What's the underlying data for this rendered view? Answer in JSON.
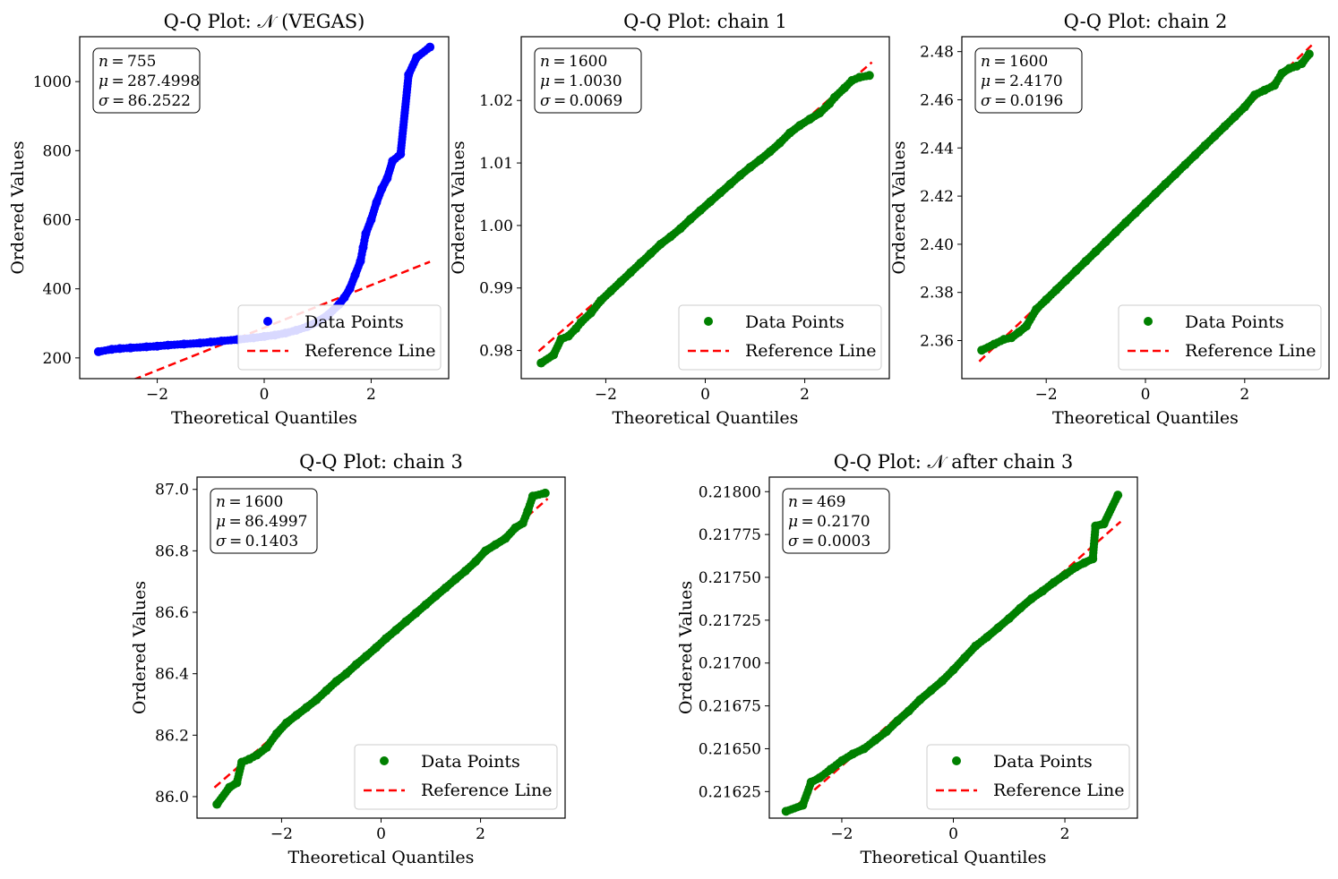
{
  "figure": {
    "legend_labels": {
      "data": "Data Points",
      "ref": "Reference Line"
    }
  },
  "chart_data": [
    {
      "type": "scatter",
      "title": "Q-Q Plot: 𝒩 (VEGAS)",
      "xlabel": "Theoretical Quantiles",
      "ylabel": "Ordered Values",
      "color": "#0000ff",
      "ref_color": "#ff0000",
      "xlim": [
        -3.45,
        3.45
      ],
      "ylim": [
        140,
        1130
      ],
      "xticks": [
        -2,
        0,
        2
      ],
      "yticks": [
        200,
        400,
        600,
        800,
        1000
      ],
      "ytick_labels": [
        "200",
        "400",
        "600",
        "800",
        "1000"
      ],
      "xtick_labels": [
        "−2",
        "0",
        "2"
      ],
      "legend_location": "lower-right",
      "stats": {
        "n": "755",
        "mu": "287.4998",
        "sigma": "86.2522"
      },
      "reference_line": {
        "slope": 61.6,
        "intercept": 287.5,
        "x_range": [
          -3.1,
          3.1
        ]
      },
      "points": [
        [
          -3.1,
          218
        ],
        [
          -2.85,
          225
        ],
        [
          -2.7,
          227
        ],
        [
          -2.5,
          229
        ],
        [
          -2.2,
          232
        ],
        [
          -2.0,
          234
        ],
        [
          -1.8,
          237
        ],
        [
          -1.5,
          240
        ],
        [
          -1.2,
          243
        ],
        [
          -1.0,
          246
        ],
        [
          -0.8,
          249
        ],
        [
          -0.5,
          253
        ],
        [
          -0.2,
          258
        ],
        [
          0.0,
          262
        ],
        [
          0.2,
          266
        ],
        [
          0.4,
          272
        ],
        [
          0.6,
          280
        ],
        [
          0.8,
          290
        ],
        [
          1.0,
          305
        ],
        [
          1.2,
          325
        ],
        [
          1.4,
          355
        ],
        [
          1.5,
          375
        ],
        [
          1.6,
          400
        ],
        [
          1.7,
          440
        ],
        [
          1.8,
          480
        ],
        [
          1.85,
          520
        ],
        [
          1.9,
          560
        ],
        [
          2.0,
          600
        ],
        [
          2.1,
          650
        ],
        [
          2.2,
          690
        ],
        [
          2.3,
          720
        ],
        [
          2.4,
          770
        ],
        [
          2.55,
          790
        ],
        [
          2.7,
          1020
        ],
        [
          2.85,
          1070
        ],
        [
          3.1,
          1100
        ]
      ]
    },
    {
      "type": "scatter",
      "title": "Q-Q Plot: chain 1",
      "xlabel": "Theoretical Quantiles",
      "ylabel": "Ordered Values",
      "color": "#008000",
      "ref_color": "#ff0000",
      "xlim": [
        -3.7,
        3.7
      ],
      "ylim": [
        0.9755,
        1.0302
      ],
      "xticks": [
        -2,
        0,
        2
      ],
      "yticks": [
        0.98,
        0.99,
        1.0,
        1.01,
        1.02
      ],
      "ytick_labels": [
        "0.98",
        "0.99",
        "1.00",
        "1.01",
        "1.02"
      ],
      "xtick_labels": [
        "−2",
        "0",
        "2"
      ],
      "legend_location": "lower-right",
      "stats": {
        "n": "1600",
        "mu": "1.0030",
        "sigma": "0.0069"
      },
      "reference_line": {
        "slope": 0.0069,
        "intercept": 1.003,
        "x_range": [
          -3.35,
          3.35
        ]
      },
      "points": [
        [
          -3.3,
          0.978
        ],
        [
          -3.05,
          0.9793
        ],
        [
          -2.9,
          0.9818
        ],
        [
          -2.75,
          0.9823
        ],
        [
          -2.6,
          0.9835
        ],
        [
          -2.5,
          0.9845
        ],
        [
          -2.3,
          0.986
        ],
        [
          -2.1,
          0.988
        ],
        [
          -1.9,
          0.9895
        ],
        [
          -1.7,
          0.991
        ],
        [
          -1.5,
          0.9925
        ],
        [
          -1.3,
          0.994
        ],
        [
          -1.1,
          0.9955
        ],
        [
          -0.9,
          0.997
        ],
        [
          -0.7,
          0.9982
        ],
        [
          -0.5,
          0.9995
        ],
        [
          -0.3,
          1.001
        ],
        [
          -0.1,
          1.0024
        ],
        [
          0.1,
          1.0038
        ],
        [
          0.3,
          1.0052
        ],
        [
          0.5,
          1.0066
        ],
        [
          0.7,
          1.008
        ],
        [
          0.9,
          1.0093
        ],
        [
          1.1,
          1.0105
        ],
        [
          1.3,
          1.0118
        ],
        [
          1.5,
          1.0132
        ],
        [
          1.7,
          1.0148
        ],
        [
          1.9,
          1.016
        ],
        [
          2.1,
          1.017
        ],
        [
          2.3,
          1.018
        ],
        [
          2.5,
          1.0195
        ],
        [
          2.6,
          1.0205
        ],
        [
          2.8,
          1.022
        ],
        [
          2.95,
          1.0232
        ],
        [
          3.1,
          1.0237
        ],
        [
          3.3,
          1.024
        ]
      ]
    },
    {
      "type": "scatter",
      "title": "Q-Q Plot: chain 2",
      "xlabel": "Theoretical Quantiles",
      "ylabel": "Ordered Values",
      "color": "#008000",
      "ref_color": "#ff0000",
      "xlim": [
        -3.7,
        3.7
      ],
      "ylim": [
        2.3442,
        2.4862
      ],
      "xticks": [
        -2,
        0,
        2
      ],
      "yticks": [
        2.36,
        2.38,
        2.4,
        2.42,
        2.44,
        2.46,
        2.48
      ],
      "ytick_labels": [
        "2.36",
        "2.38",
        "2.40",
        "2.42",
        "2.44",
        "2.46",
        "2.48"
      ],
      "xtick_labels": [
        "−2",
        "0",
        "2"
      ],
      "legend_location": "lower-right",
      "stats": {
        "n": "1600",
        "mu": "2.4170",
        "sigma": "0.0196"
      },
      "reference_line": {
        "slope": 0.0196,
        "intercept": 2.417,
        "x_range": [
          -3.35,
          3.35
        ]
      },
      "points": [
        [
          -3.3,
          2.356
        ],
        [
          -3.05,
          2.3585
        ],
        [
          -2.85,
          2.3605
        ],
        [
          -2.7,
          2.3612
        ],
        [
          -2.55,
          2.3635
        ],
        [
          -2.4,
          2.366
        ],
        [
          -2.2,
          2.373
        ],
        [
          -2.0,
          2.377
        ],
        [
          -1.8,
          2.381
        ],
        [
          -1.6,
          2.385
        ],
        [
          -1.4,
          2.389
        ],
        [
          -1.2,
          2.393
        ],
        [
          -1.0,
          2.397
        ],
        [
          -0.8,
          2.401
        ],
        [
          -0.6,
          2.405
        ],
        [
          -0.4,
          2.409
        ],
        [
          -0.2,
          2.413
        ],
        [
          0.0,
          2.417
        ],
        [
          0.2,
          2.421
        ],
        [
          0.4,
          2.425
        ],
        [
          0.6,
          2.429
        ],
        [
          0.8,
          2.433
        ],
        [
          1.0,
          2.437
        ],
        [
          1.2,
          2.441
        ],
        [
          1.4,
          2.445
        ],
        [
          1.6,
          2.449
        ],
        [
          1.8,
          2.453
        ],
        [
          2.0,
          2.457
        ],
        [
          2.2,
          2.462
        ],
        [
          2.4,
          2.464
        ],
        [
          2.6,
          2.466
        ],
        [
          2.75,
          2.471
        ],
        [
          2.9,
          2.473
        ],
        [
          3.05,
          2.474
        ],
        [
          3.15,
          2.475
        ],
        [
          3.3,
          2.479
        ]
      ]
    },
    {
      "type": "scatter",
      "title": "Q-Q Plot: chain 3",
      "xlabel": "Theoretical Quantiles",
      "ylabel": "Ordered Values",
      "color": "#008000",
      "ref_color": "#ff0000",
      "xlim": [
        -3.7,
        3.7
      ],
      "ylim": [
        85.93,
        87.04
      ],
      "xticks": [
        -2,
        0,
        2
      ],
      "yticks": [
        86.0,
        86.2,
        86.4,
        86.6,
        86.8,
        87.0
      ],
      "ytick_labels": [
        "86.0",
        "86.2",
        "86.4",
        "86.6",
        "86.8",
        "87.0"
      ],
      "xtick_labels": [
        "−2",
        "0",
        "2"
      ],
      "legend_location": "lower-right",
      "stats": {
        "n": "1600",
        "mu": "86.4997",
        "sigma": "0.1403"
      },
      "reference_line": {
        "slope": 0.1403,
        "intercept": 86.4997,
        "x_range": [
          -3.35,
          3.35
        ]
      },
      "points": [
        [
          -3.3,
          85.975
        ],
        [
          -3.05,
          86.03
        ],
        [
          -2.9,
          86.045
        ],
        [
          -2.8,
          86.112
        ],
        [
          -2.65,
          86.122
        ],
        [
          -2.5,
          86.135
        ],
        [
          -2.3,
          86.16
        ],
        [
          -2.1,
          86.205
        ],
        [
          -1.9,
          86.24
        ],
        [
          -1.7,
          86.265
        ],
        [
          -1.5,
          86.29
        ],
        [
          -1.3,
          86.315
        ],
        [
          -1.1,
          86.345
        ],
        [
          -0.9,
          86.375
        ],
        [
          -0.7,
          86.4
        ],
        [
          -0.5,
          86.43
        ],
        [
          -0.3,
          86.457
        ],
        [
          -0.1,
          86.485
        ],
        [
          0.1,
          86.515
        ],
        [
          0.3,
          86.542
        ],
        [
          0.5,
          86.57
        ],
        [
          0.7,
          86.597
        ],
        [
          0.9,
          86.625
        ],
        [
          1.1,
          86.653
        ],
        [
          1.3,
          86.68
        ],
        [
          1.5,
          86.708
        ],
        [
          1.7,
          86.735
        ],
        [
          1.9,
          86.765
        ],
        [
          2.1,
          86.8
        ],
        [
          2.3,
          86.82
        ],
        [
          2.5,
          86.84
        ],
        [
          2.7,
          86.875
        ],
        [
          2.85,
          86.89
        ],
        [
          2.95,
          86.93
        ],
        [
          3.05,
          86.978
        ],
        [
          3.3,
          86.988
        ]
      ]
    },
    {
      "type": "scatter",
      "title": "Q-Q Plot: 𝒩 after chain 3",
      "xlabel": "Theoretical Quantiles",
      "ylabel": "Ordered Values",
      "color": "#008000",
      "ref_color": "#ff0000",
      "xlim": [
        -3.3,
        3.3
      ],
      "ylim": [
        0.216095,
        0.218085
      ],
      "xticks": [
        -2,
        0,
        2
      ],
      "yticks": [
        0.21625,
        0.2165,
        0.21675,
        0.217,
        0.21725,
        0.2175,
        0.21775,
        0.218
      ],
      "ytick_labels": [
        "0.21625",
        "0.21650",
        "0.21675",
        "0.21700",
        "0.21725",
        "0.21750",
        "0.21775",
        "0.21800"
      ],
      "xtick_labels": [
        "−2",
        "0",
        "2"
      ],
      "legend_location": "lower-right",
      "stats": {
        "n": "469",
        "mu": "0.2170",
        "sigma": "0.0003"
      },
      "reference_line": {
        "slope": 0.000285,
        "intercept": 0.21697,
        "x_range": [
          -3.0,
          3.0
        ]
      },
      "points": [
        [
          -3.0,
          0.216135
        ],
        [
          -2.7,
          0.21617
        ],
        [
          -2.55,
          0.216305
        ],
        [
          -2.4,
          0.21633
        ],
        [
          -2.2,
          0.21638
        ],
        [
          -2.0,
          0.21643
        ],
        [
          -1.8,
          0.21647
        ],
        [
          -1.6,
          0.2165
        ],
        [
          -1.4,
          0.21655
        ],
        [
          -1.2,
          0.2166
        ],
        [
          -1.0,
          0.216663
        ],
        [
          -0.8,
          0.21672
        ],
        [
          -0.6,
          0.216785
        ],
        [
          -0.4,
          0.21684
        ],
        [
          -0.2,
          0.216895
        ],
        [
          0.0,
          0.21696
        ],
        [
          0.2,
          0.21703
        ],
        [
          0.4,
          0.2171
        ],
        [
          0.6,
          0.21715
        ],
        [
          0.8,
          0.217205
        ],
        [
          1.0,
          0.21726
        ],
        [
          1.2,
          0.21732
        ],
        [
          1.4,
          0.217375
        ],
        [
          1.6,
          0.21742
        ],
        [
          1.8,
          0.21747
        ],
        [
          2.0,
          0.217515
        ],
        [
          2.2,
          0.21756
        ],
        [
          2.35,
          0.217585
        ],
        [
          2.5,
          0.217608
        ],
        [
          2.55,
          0.2178
        ],
        [
          2.7,
          0.217812
        ],
        [
          2.95,
          0.21798
        ]
      ]
    }
  ]
}
